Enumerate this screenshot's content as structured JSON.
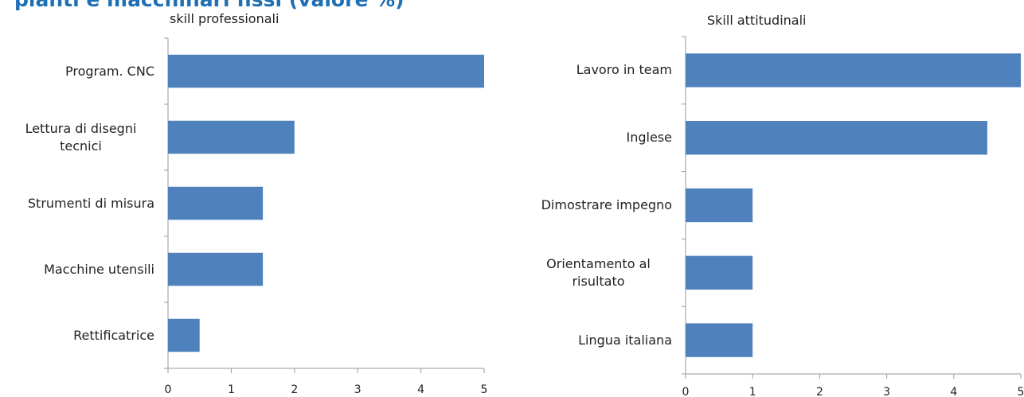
{
  "slide_title": "pianti e macchinari fissi (valore %)",
  "chart_data": [
    {
      "type": "bar",
      "orientation": "horizontal",
      "title": "skill professionali",
      "categories": [
        "Program. CNC",
        "Lettura di disegni tecnici",
        "Strumenti di misura",
        "Macchine utensili",
        "Rettificatrice"
      ],
      "values": [
        5,
        2,
        1.5,
        1.5,
        0.5
      ],
      "color": "#4f81bd",
      "xlim": [
        0,
        5
      ],
      "xticks": [
        0,
        1,
        2,
        3,
        4,
        5
      ]
    },
    {
      "type": "bar",
      "orientation": "horizontal",
      "title": "Skill attitudinali",
      "categories": [
        "Lavoro in team",
        "Inglese",
        "Dimostrare impegno",
        "Orientamento al risultato",
        "Lingua italiana"
      ],
      "values": [
        5,
        4.5,
        1,
        1,
        1
      ],
      "color": "#4f81bd",
      "xlim": [
        0,
        5
      ],
      "xticks": [
        0,
        1,
        2,
        3,
        4,
        5
      ]
    }
  ]
}
